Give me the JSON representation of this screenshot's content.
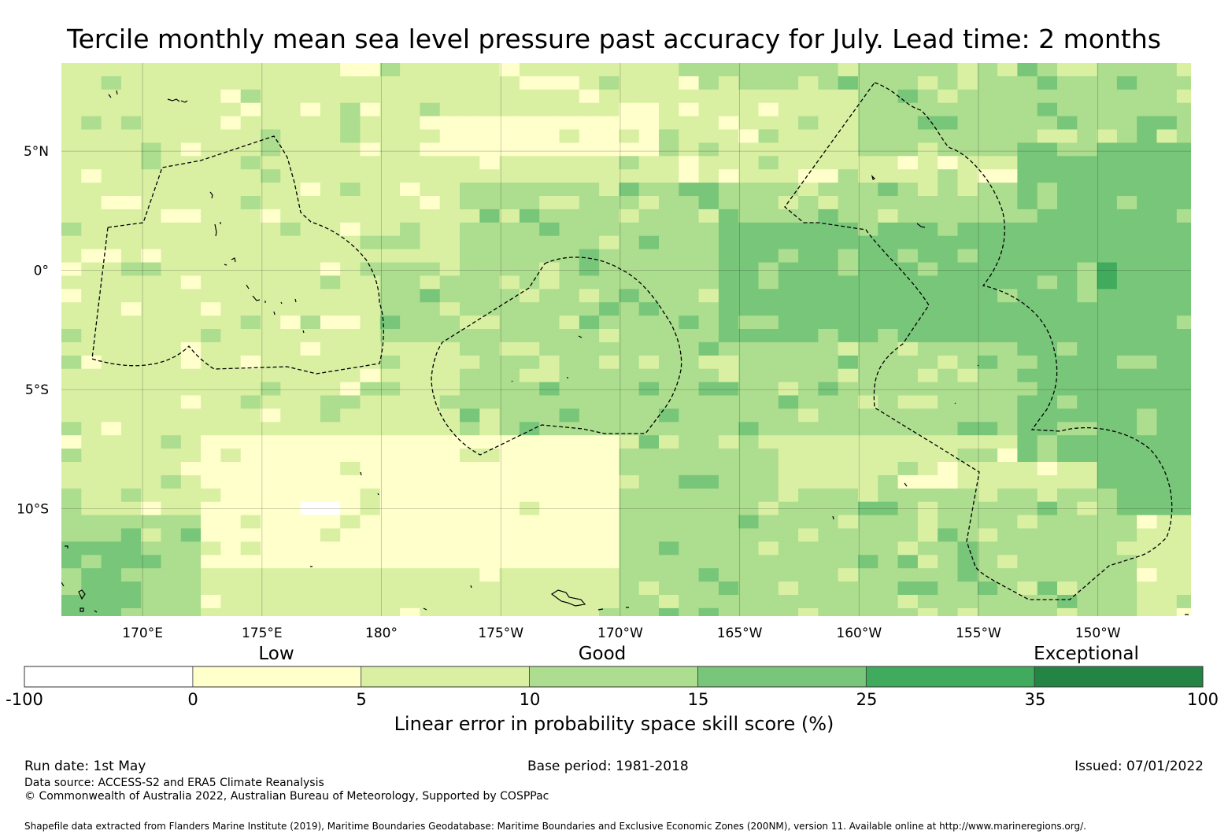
{
  "title": "Tercile monthly mean sea level pressure past accuracy for July. Lead time: 2 months",
  "map": {
    "lat_range": [
      -14.5,
      8.7
    ],
    "lon_range_east": [
      166.6,
      213.9
    ],
    "lat_ticks": [
      {
        "value": 5,
        "label": "5°N"
      },
      {
        "value": 0,
        "label": "0°"
      },
      {
        "value": -5,
        "label": "5°S"
      },
      {
        "value": -10,
        "label": "10°S"
      }
    ],
    "lon_ticks": [
      {
        "value": 170,
        "label": "170°E"
      },
      {
        "value": 175,
        "label": "175°E"
      },
      {
        "value": 180,
        "label": "180°"
      },
      {
        "value": 185,
        "label": "175°W"
      },
      {
        "value": 190,
        "label": "170°W"
      },
      {
        "value": 195,
        "label": "165°W"
      },
      {
        "value": 200,
        "label": "160°W"
      },
      {
        "value": 205,
        "label": "155°W"
      },
      {
        "value": 210,
        "label": "150°W"
      }
    ],
    "grid": true,
    "eez_boundaries": "dashed"
  },
  "colorbar": {
    "category_labels": [
      "Low",
      "Good",
      "Exceptional"
    ],
    "bins": [
      {
        "from": "-100",
        "to": "0",
        "color": "#ffffff"
      },
      {
        "from": "0",
        "to": "5",
        "color": "#ffffcc"
      },
      {
        "from": "5",
        "to": "10",
        "color": "#d9f0a3"
      },
      {
        "from": "10",
        "to": "15",
        "color": "#addd8e"
      },
      {
        "from": "15",
        "to": "25",
        "color": "#78c679"
      },
      {
        "from": "25",
        "to": "35",
        "color": "#41ab5d"
      },
      {
        "from": "35",
        "to": "100",
        "color": "#238443"
      }
    ],
    "tick_labels": [
      "-100",
      "0",
      "5",
      "10",
      "15",
      "25",
      "35",
      "100"
    ],
    "label": "Linear error in probability space skill score (%)"
  },
  "footer": {
    "run_date": "Run date: 1st May",
    "base_period": "Base period: 1981-2018",
    "issued": "Issued: 07/01/2022",
    "data_source": "Data source: ACCESS-S2 and ERA5 Climate Reanalysis",
    "copyright": "© Commonwealth of Australia 2022, Australian Bureau of Meteorology, Supported by COSPPac",
    "shapefile_note": "Shapefile data extracted from Flanders Marine Institute (2019), Maritime Boundaries Geodatabase: Maritime Boundaries and Exclusive Economic Zones (200NM), version 11. Available online at http://www.marineregions.org/."
  }
}
